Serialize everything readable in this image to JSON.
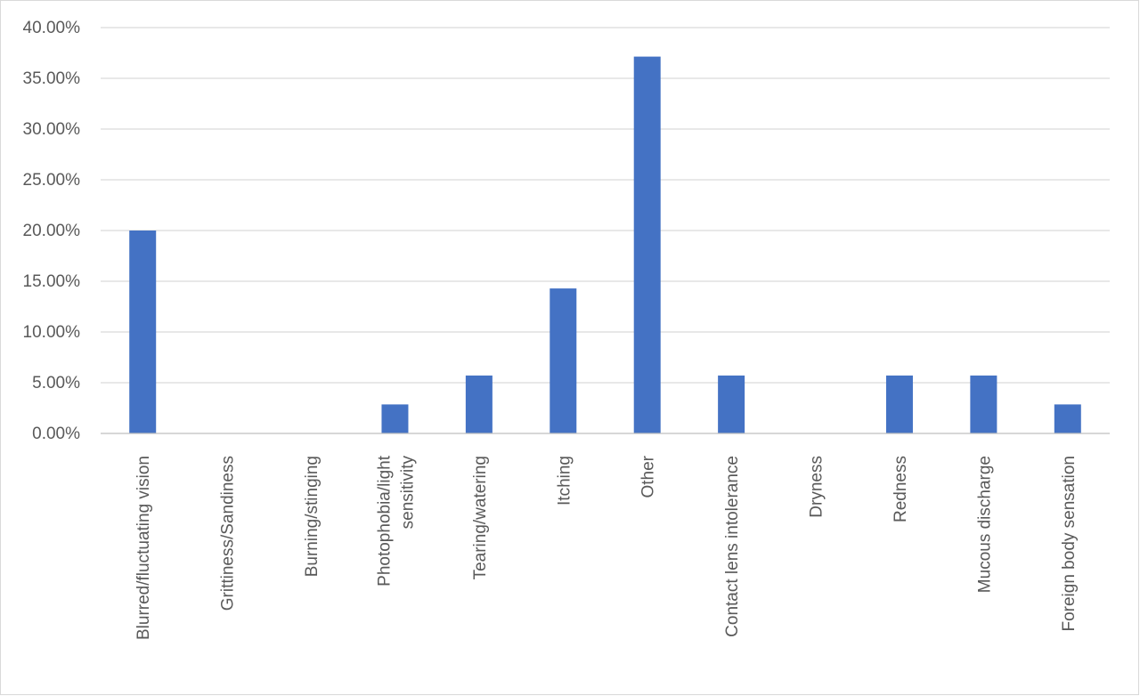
{
  "chart_data": {
    "type": "bar",
    "categories": [
      [
        "Blurred/fluctuating vision"
      ],
      [
        "Grittiness/Sandiness"
      ],
      [
        "Burning/stinging"
      ],
      [
        "Photophobia/light",
        "sensitivity"
      ],
      [
        "Tearing/watering"
      ],
      [
        "Itching"
      ],
      [
        "Other"
      ],
      [
        "Contact lens intolerance"
      ],
      [
        "Dryness"
      ],
      [
        "Redness"
      ],
      [
        "Mucous discharge"
      ],
      [
        "Foreign body sensation"
      ]
    ],
    "values": [
      20.0,
      0.0,
      0.0,
      2.86,
      5.71,
      14.29,
      37.14,
      5.71,
      0.0,
      5.71,
      5.71,
      2.86
    ],
    "ylim": [
      0,
      40
    ],
    "yticks": [
      "0.00%",
      "5.00%",
      "10.00%",
      "15.00%",
      "20.00%",
      "25.00%",
      "30.00%",
      "35.00%",
      "40.00%"
    ],
    "ytick_values": [
      0,
      5,
      10,
      15,
      20,
      25,
      30,
      35,
      40
    ],
    "grid": true,
    "legend": "none",
    "colors": {
      "bar": "#4472c4",
      "grid": "#d9d9d9",
      "text": "#595959"
    }
  }
}
